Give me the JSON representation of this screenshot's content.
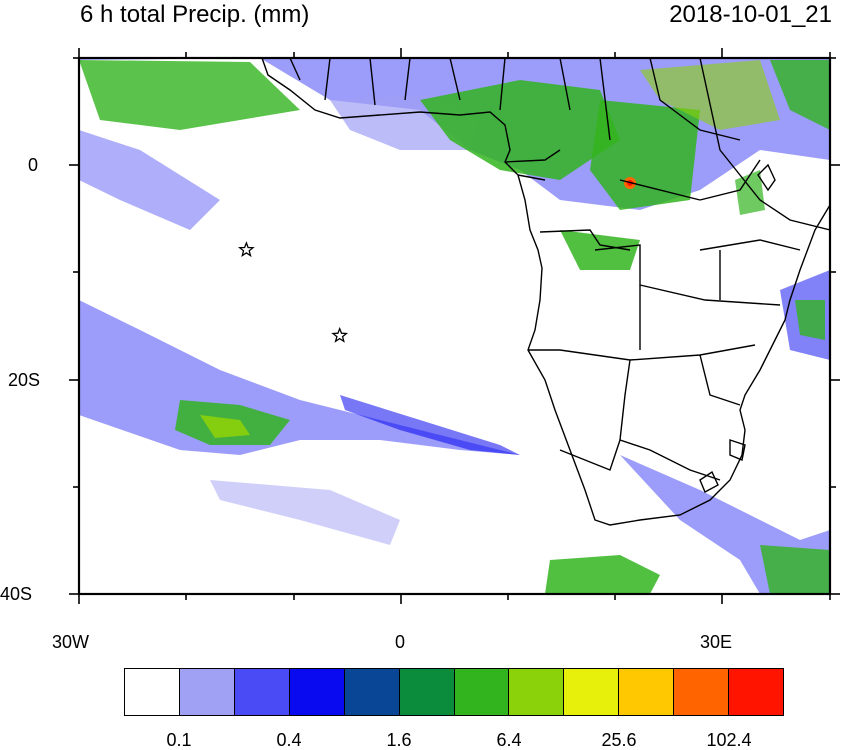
{
  "title": "6 h total Precip. (mm)",
  "datetime": "2018-10-01_21",
  "axes": {
    "y_ticks": [
      "0",
      "20S",
      "40S"
    ],
    "x_ticks": [
      "30W",
      "0",
      "30E"
    ],
    "lon_range": [
      -30,
      40
    ],
    "lat_range": [
      -40,
      10
    ]
  },
  "stations": [
    {
      "symbol": "star",
      "lon": -14.4,
      "lat": -7.9
    },
    {
      "symbol": "star",
      "lon": -5.7,
      "lat": -15.9
    }
  ],
  "colorbar": {
    "colors": [
      "#ffffff",
      "#a0a0f5",
      "#4b4bf5",
      "#0a0af0",
      "#0a4696",
      "#0a8c3c",
      "#32b41e",
      "#8cd20a",
      "#e6f00a",
      "#ffc800",
      "#ff6400",
      "#ff1400"
    ],
    "labels": [
      "0.1",
      "0.4",
      "1.6",
      "6.4",
      "25.6",
      "102.4"
    ],
    "units": "mm"
  },
  "colors": {
    "coastline": "#000000",
    "background": "#ffffff"
  }
}
